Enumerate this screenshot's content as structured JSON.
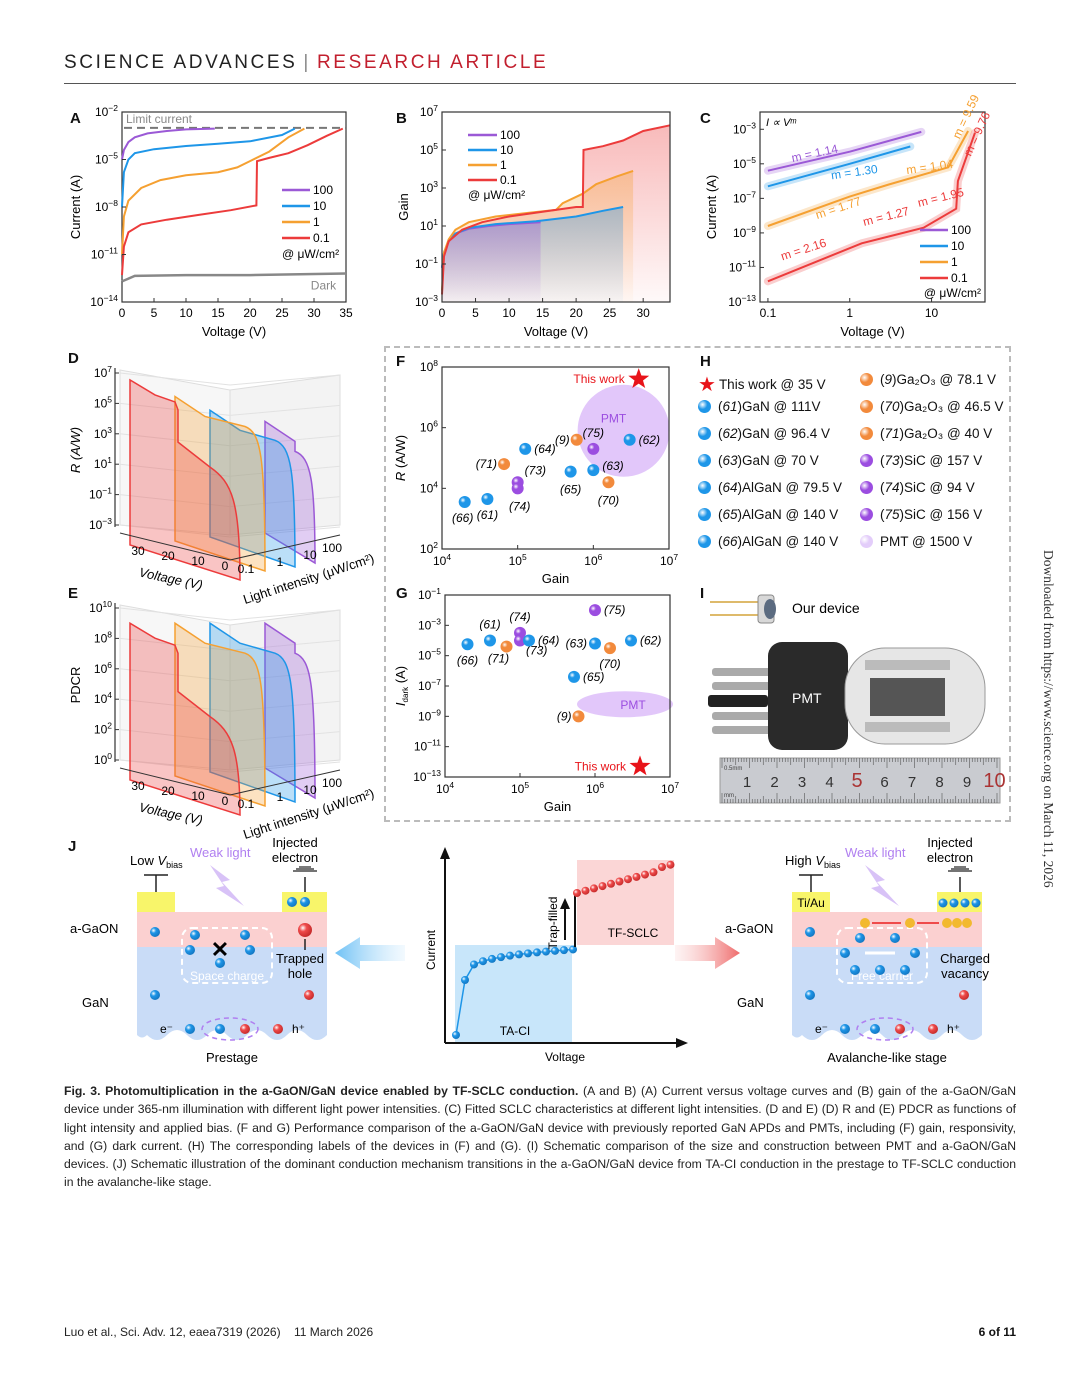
{
  "header": {
    "journal": "SCIENCE ADVANCES",
    "separator": "|",
    "section": "RESEARCH ARTICLE"
  },
  "panels": {
    "A": "A",
    "B": "B",
    "C": "C",
    "D": "D",
    "E": "E",
    "F": "F",
    "G": "G",
    "H": "H",
    "I": "I",
    "J": "J"
  },
  "chart_data": [
    {
      "id": "A",
      "type": "line",
      "title": "",
      "xlabel": "Voltage (V)",
      "ylabel": "Current (A)",
      "xlim": [
        0,
        35
      ],
      "ylim_log10": [
        -14,
        -2
      ],
      "xticks": [
        0,
        5,
        10,
        15,
        20,
        25,
        30,
        35
      ],
      "yticks": [
        "10^-2",
        "10^-5",
        "10^-8",
        "10^-11",
        "10^-14"
      ],
      "annotations": [
        "Limit current",
        "Dark"
      ],
      "legend": {
        "position": "right",
        "unit": "@ μW/cm²",
        "entries": [
          "100",
          "10",
          "1",
          "0.1"
        ]
      },
      "limit_current_log10": -3,
      "series": [
        {
          "name": "100",
          "color": "#9b59d6",
          "x": [
            0,
            0.3,
            1,
            2,
            4,
            7,
            10,
            14.5
          ],
          "log10y": [
            -5,
            -4.4,
            -3.9,
            -3.6,
            -3.35,
            -3.2,
            -3.1,
            -3.05
          ]
        },
        {
          "name": "10",
          "color": "#1e96e8",
          "x": [
            0,
            0.3,
            1,
            2,
            5,
            10,
            15,
            20,
            25,
            27
          ],
          "log10y": [
            -8,
            -5.8,
            -5,
            -4.6,
            -4.35,
            -4.15,
            -4,
            -3.85,
            -3.45,
            -3.05
          ]
        },
        {
          "name": "1",
          "color": "#f5a031",
          "x": [
            0,
            0.3,
            1,
            3,
            6,
            10,
            15,
            17,
            18,
            20,
            23,
            26,
            28.5
          ],
          "log10y": [
            -11,
            -8.6,
            -7.6,
            -6.8,
            -6.3,
            -6.0,
            -5.8,
            -5.6,
            -5.5,
            -5.1,
            -4.5,
            -3.6,
            -3.05
          ]
        },
        {
          "name": "0.1",
          "color": "#ec3b3b",
          "x": [
            0,
            0.3,
            1,
            3,
            7,
            12,
            17,
            21,
            21.1,
            23,
            26,
            29,
            32,
            34.5
          ],
          "log10y": [
            -12.3,
            -10.5,
            -9.6,
            -9.1,
            -8.8,
            -8.5,
            -8.2,
            -7.9,
            -5.1,
            -4.9,
            -4.6,
            -4.1,
            -3.5,
            -3.05
          ]
        },
        {
          "name": "Dark",
          "color": "#888888",
          "x": [
            0,
            2,
            10,
            20,
            35
          ],
          "log10y": [
            -12.7,
            -12.35,
            -12.3,
            -12.3,
            -12.2
          ]
        }
      ]
    },
    {
      "id": "B",
      "type": "area",
      "xlabel": "Voltage (V)",
      "ylabel": "Gain",
      "xlim": [
        0,
        34
      ],
      "ylim_log10": [
        -3,
        7
      ],
      "xticks": [
        0,
        5,
        10,
        15,
        20,
        25,
        30
      ],
      "yticks": [
        "10^7",
        "10^5",
        "10^3",
        "10^1",
        "10^-1",
        "10^-3"
      ],
      "legend": {
        "position": "top-left",
        "unit": "@ μW/cm²",
        "entries": [
          "100",
          "10",
          "1",
          "0.1"
        ]
      },
      "series": [
        {
          "name": "100",
          "color": "#9b59d6",
          "x": [
            0,
            0.3,
            1,
            2,
            4,
            7,
            10,
            14.7
          ],
          "log10y": [
            -1.2,
            -0.4,
            0.2,
            0.6,
            0.85,
            1.0,
            1.1,
            1.2
          ]
        },
        {
          "name": "10",
          "color": "#1e96e8",
          "x": [
            0,
            0.3,
            1,
            2,
            4,
            8,
            14,
            20,
            24,
            27
          ],
          "log10y": [
            -1.2,
            -0.4,
            0.2,
            0.6,
            0.9,
            1.1,
            1.25,
            1.5,
            1.8,
            2.0
          ]
        },
        {
          "name": "1",
          "color": "#f5a031",
          "x": [
            0,
            0.3,
            1,
            2,
            4,
            8,
            13,
            17,
            18,
            21,
            23,
            26,
            28.5
          ],
          "log10y": [
            -2.4,
            -0.4,
            0.3,
            0.8,
            1.2,
            1.5,
            1.7,
            1.85,
            2.2,
            2.7,
            3.2,
            3.6,
            3.9
          ]
        },
        {
          "name": "0.1",
          "color": "#ec3b3b",
          "x": [
            0,
            0.3,
            1,
            3,
            6,
            10,
            15,
            20,
            21,
            21.1,
            24,
            27,
            30,
            34
          ],
          "log10y": [
            -2.6,
            -0.6,
            0.2,
            0.8,
            1.2,
            1.5,
            1.75,
            2.0,
            2.0,
            5.0,
            5.2,
            5.5,
            6.0,
            6.3
          ]
        }
      ]
    },
    {
      "id": "C",
      "type": "line",
      "xlabel": "Voltage (V)",
      "ylabel": "Current (A)",
      "xscale": "log",
      "xlim": [
        0.08,
        45
      ],
      "ylim_log10": [
        -13,
        -2
      ],
      "xticks": [
        "0.1",
        "1",
        "10"
      ],
      "yticks": [
        "10^-3",
        "10^-5",
        "10^-7",
        "10^-9",
        "10^-11",
        "10^-13"
      ],
      "annotation": "I ∝ V^m",
      "legend": {
        "position": "bottom-right",
        "unit": "@ μW/cm²",
        "entries": [
          "100",
          "10",
          "1",
          "0.1"
        ]
      },
      "fits": [
        {
          "series": "100",
          "m": "1.14",
          "color": "#9b59d6"
        },
        {
          "series": "10",
          "m": "1.30",
          "color": "#1e96e8"
        },
        {
          "series": "1",
          "m": "1.77",
          "color": "#f5a031"
        },
        {
          "series": "1",
          "m": "1.04",
          "color": "#f5a031"
        },
        {
          "series": "1",
          "m": "9.59",
          "color": "#f5a031"
        },
        {
          "series": "0.1",
          "m": "2.16",
          "color": "#ec3b3b"
        },
        {
          "series": "0.1",
          "m": "1.27",
          "color": "#ec3b3b"
        },
        {
          "series": "0.1",
          "m": "1.95",
          "color": "#ec3b3b"
        },
        {
          "series": "0.1",
          "m": "9.76",
          "color": "#ec3b3b"
        }
      ],
      "series": [
        {
          "name": "100",
          "color": "#9b59d6",
          "x": [
            0.1,
            1,
            7.5
          ],
          "log10y": [
            -5.4,
            -4.3,
            -3.15
          ]
        },
        {
          "name": "10",
          "color": "#1e96e8",
          "x": [
            0.1,
            1,
            5.5
          ],
          "log10y": [
            -6.3,
            -5.0,
            -4.0
          ]
        },
        {
          "name": "1",
          "color": "#f5a031",
          "x": [
            0.1,
            1,
            3,
            16,
            28
          ],
          "log10y": [
            -8.6,
            -6.9,
            -6.2,
            -5.2,
            -3.1
          ]
        },
        {
          "name": "0.1",
          "color": "#ec3b3b",
          "x": [
            0.1,
            1.4,
            8,
            20,
            21,
            34
          ],
          "log10y": [
            -11.8,
            -9.6,
            -8.7,
            -7.6,
            -6.0,
            -3.2
          ]
        }
      ]
    },
    {
      "id": "D",
      "type": "area",
      "projection": "3d",
      "xlabel": "Voltage (V)",
      "ylabel": "Light intensity (μW/cm²)",
      "zlabel": "R (A/W)",
      "voltage_ticks": [
        "30",
        "20",
        "10",
        "0"
      ],
      "intensity_ticks": [
        "0.1",
        "1",
        "10",
        "100"
      ],
      "zticks": [
        "10^7",
        "10^5",
        "10^3",
        "10^1",
        "10^-1",
        "10^-3"
      ],
      "series_peak_log10": [
        {
          "name": "0.1",
          "color": "#ec3b3b",
          "peak": 7.5,
          "step_log10": 3
        },
        {
          "name": "1",
          "color": "#f5a031",
          "peak": 6.3
        },
        {
          "name": "10",
          "color": "#1e96e8",
          "peak": 5.3
        },
        {
          "name": "100",
          "color": "#9b59d6",
          "peak": 4.5
        }
      ]
    },
    {
      "id": "E",
      "type": "area",
      "projection": "3d",
      "xlabel": "Voltage (V)",
      "ylabel": "Light intensity (μW/cm²)",
      "zlabel": "PDCR",
      "voltage_ticks": [
        "30",
        "20",
        "10",
        "0"
      ],
      "intensity_ticks": [
        "0.1",
        "1",
        "10",
        "100"
      ],
      "zticks": [
        "10^10",
        "10^8",
        "10^6",
        "10^4",
        "10^2",
        "10^0"
      ],
      "series_peak_log10": [
        {
          "name": "0.1",
          "color": "#ec3b3b",
          "peak": 9,
          "step_log10": 4.5
        },
        {
          "name": "1",
          "color": "#f5a031",
          "peak": 9
        },
        {
          "name": "10",
          "color": "#1e96e8",
          "peak": 9
        },
        {
          "name": "100",
          "color": "#9b59d6",
          "peak": 9
        }
      ]
    },
    {
      "id": "F",
      "type": "scatter",
      "xlabel": "Gain",
      "ylabel": "R (A/W)",
      "xscale": "log",
      "yscale": "log",
      "xlim_log10": [
        4,
        7
      ],
      "ylim_log10": [
        2,
        8
      ],
      "xticks": [
        "10^4",
        "10^5",
        "10^6",
        "10^7"
      ],
      "yticks": [
        "10^8",
        "10^6",
        "10^4",
        "10^2"
      ],
      "region": {
        "label": "PMT",
        "cx_log10": 6.4,
        "cy_log10": 5.9,
        "color": "#d8b4f8"
      },
      "points": [
        {
          "label": "This work",
          "x_log10": 6.6,
          "y_log10": 7.6,
          "kind": "star",
          "color": "#e8141a"
        },
        {
          "label": "(62)",
          "x_log10": 6.48,
          "y_log10": 5.6,
          "color": "#1e96e8"
        },
        {
          "label": "(9)",
          "x_log10": 5.78,
          "y_log10": 5.6,
          "color": "#f28a3c"
        },
        {
          "label": "(75)",
          "x_log10": 6.0,
          "y_log10": 5.3,
          "color": "#9b4de0"
        },
        {
          "label": "(64)",
          "x_log10": 5.1,
          "y_log10": 5.3,
          "color": "#1e96e8"
        },
        {
          "label": "(71)",
          "x_log10": 4.82,
          "y_log10": 4.8,
          "color": "#f28a3c"
        },
        {
          "label": "(73)",
          "x_log10": 5.0,
          "y_log10": 4.2,
          "color": "#9b4de0"
        },
        {
          "label": "(74)",
          "x_log10": 5.0,
          "y_log10": 4.0,
          "color": "#9b4de0"
        },
        {
          "label": "(65)",
          "x_log10": 5.7,
          "y_log10": 4.55,
          "color": "#1e96e8"
        },
        {
          "label": "(63)",
          "x_log10": 6.0,
          "y_log10": 4.6,
          "color": "#1e96e8"
        },
        {
          "label": "(70)",
          "x_log10": 6.2,
          "y_log10": 4.2,
          "color": "#f28a3c"
        },
        {
          "label": "(66)",
          "x_log10": 4.3,
          "y_log10": 3.55,
          "color": "#1e96e8"
        },
        {
          "label": "(61)",
          "x_log10": 4.6,
          "y_log10": 3.65,
          "color": "#1e96e8"
        }
      ]
    },
    {
      "id": "G",
      "type": "scatter",
      "xlabel": "Gain",
      "ylabel": "I_dark (A)",
      "xscale": "log",
      "yscale": "log",
      "xlim_log10": [
        4,
        7
      ],
      "ylim_log10": [
        -13,
        -1
      ],
      "xticks": [
        "10^4",
        "10^5",
        "10^6",
        "10^7"
      ],
      "yticks": [
        "10^-1",
        "10^-3",
        "10^-5",
        "10^-7",
        "10^-9",
        "10^-11",
        "10^-13"
      ],
      "region": {
        "label": "PMT",
        "cx_log10": 6.4,
        "cy_log10": -8.2,
        "color": "#d8b4f8"
      },
      "points": [
        {
          "label": "(75)",
          "x_log10": 6.0,
          "y_log10": -2.0,
          "color": "#9b4de0"
        },
        {
          "label": "(74)",
          "x_log10": 5.0,
          "y_log10": -3.5,
          "color": "#9b4de0"
        },
        {
          "label": "(61)",
          "x_log10": 4.6,
          "y_log10": -4.0,
          "color": "#1e96e8"
        },
        {
          "label": "(73)",
          "x_log10": 5.0,
          "y_log10": -4.0,
          "color": "#9b4de0"
        },
        {
          "label": "(64)",
          "x_log10": 5.12,
          "y_log10": -4.0,
          "color": "#1e96e8"
        },
        {
          "label": "(66)",
          "x_log10": 4.3,
          "y_log10": -4.25,
          "color": "#1e96e8"
        },
        {
          "label": "(71)",
          "x_log10": 4.82,
          "y_log10": -4.4,
          "color": "#f28a3c"
        },
        {
          "label": "(63)",
          "x_log10": 6.0,
          "y_log10": -4.2,
          "color": "#1e96e8"
        },
        {
          "label": "(70)",
          "x_log10": 6.2,
          "y_log10": -4.5,
          "color": "#f28a3c"
        },
        {
          "label": "(62)",
          "x_log10": 6.48,
          "y_log10": -4.0,
          "color": "#1e96e8"
        },
        {
          "label": "(65)",
          "x_log10": 5.72,
          "y_log10": -6.4,
          "color": "#1e96e8"
        },
        {
          "label": "(9)",
          "x_log10": 5.78,
          "y_log10": -9.0,
          "color": "#f28a3c"
        },
        {
          "label": "This work",
          "x_log10": 6.6,
          "y_log10": -12.3,
          "kind": "star",
          "color": "#e8141a"
        }
      ]
    },
    {
      "id": "J-center",
      "type": "line",
      "xlabel": "Voltage",
      "ylabel": "Current",
      "regions": [
        "TA-CI",
        "TF-SCLC"
      ],
      "annotation": "Trap-filled"
    }
  ],
  "legendH": {
    "col1": [
      {
        "kind": "star",
        "color": "#e8141a",
        "text": "This work @ 35 V"
      },
      {
        "color": "#1e96e8",
        "ref": "61",
        "text": " GaN @ 111V"
      },
      {
        "color": "#1e96e8",
        "ref": "62",
        "text": " GaN @ 96.4 V"
      },
      {
        "color": "#1e96e8",
        "ref": "63",
        "text": " GaN @ 70 V"
      },
      {
        "color": "#1e96e8",
        "ref": "64",
        "text": " AlGaN @ 79.5 V"
      },
      {
        "color": "#1e96e8",
        "ref": "65",
        "text": " AlGaN @ 140 V"
      },
      {
        "color": "#1e96e8",
        "ref": "66",
        "text": " AlGaN @ 140 V"
      }
    ],
    "col2": [
      {
        "color": "#f28a3c",
        "ref": "9",
        "text": " Ga₂O₃ @ 78.1 V"
      },
      {
        "color": "#f28a3c",
        "ref": "70",
        "text": " Ga₂O₃ @ 46.5 V"
      },
      {
        "color": "#f28a3c",
        "ref": "71",
        "text": " Ga₂O₃ @ 40 V"
      },
      {
        "color": "#9b4de0",
        "ref": "73",
        "text": " SiC @ 157 V"
      },
      {
        "color": "#9b4de0",
        "ref": "74",
        "text": " SiC @ 94 V"
      },
      {
        "color": "#9b4de0",
        "ref": "75",
        "text": " SiC @ 156 V"
      },
      {
        "color": "#e3cdfa",
        "ref": "",
        "text": "PMT @ 1500 V"
      }
    ]
  },
  "panelI": {
    "device_label": "Our device",
    "pmt_label": "PMT",
    "ruler_numbers": [
      "1",
      "2",
      "3",
      "4",
      "5",
      "6",
      "7",
      "8",
      "9",
      "10"
    ],
    "ruler_unit_top": "0.5mm",
    "ruler_unit_bottom": "mm"
  },
  "panelJ": {
    "left": {
      "bias": "Low V",
      "bias_sub": "bias",
      "light": "Weak light",
      "injected": "Injected\nelectron",
      "layer_top": "a-GaON",
      "layer_bottom": "GaN",
      "box_label": "Space charge",
      "trapped": "Trapped\nhole",
      "e": "e⁻",
      "h": "h⁺",
      "stage": "Prestage"
    },
    "center": {
      "ylabel": "Current",
      "xlabel": "Voltage",
      "region1": "TA-CI",
      "region2": "TF-SCLC",
      "arrow_label": "Trap-filled"
    },
    "right": {
      "bias": "High V",
      "bias_sub": "bias",
      "contact": "Ti/Au",
      "light": "Weak light",
      "injected": "Injected\nelectron",
      "layer_top": "a-GaON",
      "layer_bottom": "GaN",
      "box_label": "Free carrier",
      "charged": "Charged\nvacancy",
      "e": "e⁻",
      "h": "h⁺",
      "stage": "Avalanche-like stage"
    }
  },
  "caption": {
    "title": "Fig. 3. Photomultiplication in the a-GaON/GaN device enabled by TF-SCLC conduction.",
    "body": " (A and B) (A) Current versus voltage curves and (B) gain of the a-GaON/GaN device under 365-nm illumination with different light power intensities. (C) Fitted SCLC characteristics at different light intensities. (D and E) (D) R and (E) PDCR as functions of light intensity and applied bias. (F and G) Performance comparison of the a-GaON/GaN device with previously reported GaN APDs and PMTs, including (F) gain, responsivity, and (G) dark current. (H) The corresponding labels of the devices in (F) and (G). (I) Schematic comparison of the size and construction between PMT and a-GaON/GaN devices. (J) Schematic illustration of the dominant conduction mechanism transitions in the a-GaON/GaN device from TA-CI conduction in the prestage to TF-SCLC conduction in the avalanche-like stage."
  },
  "footer": {
    "authors": "Luo et al., Sci. Adv. 12, eaea7319 (2026)",
    "date": "11 March 2026",
    "page": "6 of 11"
  },
  "sidenote": "Downloaded from https://www.science.org on March 11, 2026"
}
